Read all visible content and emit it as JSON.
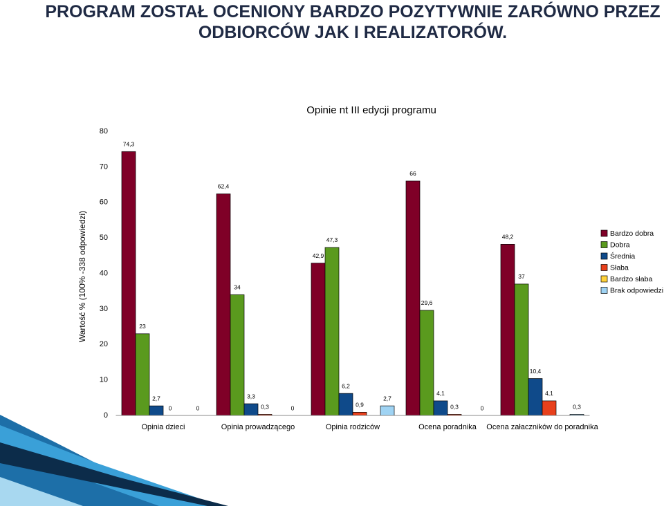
{
  "slide_title": "PROGRAM ZOSTAŁ OCENIONY BARDZO POZYTYWNIE ZARÓWNO PRZEZ ODBIORCÓW JAK I REALIZATORÓW.",
  "chart_data": {
    "type": "bar",
    "title": "Opinie nt III edycji programu",
    "y_label": "Wartość % (100% -338 odpowiedzi)",
    "categories": [
      "Opinia dzieci",
      "Opinia prowadzącego",
      "Opinia rodziców",
      "Ocena poradnika",
      "Ocena załaczników do poradnika"
    ],
    "series": [
      {
        "name": "Bardzo dobra",
        "color": "#7f0027",
        "values": [
          74.3,
          62.4,
          42.9,
          66,
          48.2
        ],
        "value_labels": [
          "74,3",
          "62,4",
          "42,9",
          "66",
          "48,2"
        ]
      },
      {
        "name": "Dobra",
        "color": "#5a9a1e",
        "values": [
          23,
          34,
          47.3,
          29.6,
          37
        ],
        "value_labels": [
          "23",
          "34",
          "47,3",
          "29,6",
          "37"
        ]
      },
      {
        "name": "Średnia",
        "color": "#0f4a8a",
        "values": [
          2.7,
          3.3,
          6.2,
          4.1,
          10.4
        ],
        "value_labels": [
          "2,7",
          "3,3",
          "6,2",
          "4,1",
          "10,4"
        ]
      },
      {
        "name": "Słaba",
        "color": "#e8401c",
        "values": [
          0,
          0.3,
          0.9,
          0.3,
          4.1
        ],
        "value_labels": [
          "0",
          "0,3",
          "0,9",
          "0,3",
          "4,1"
        ]
      },
      {
        "name": "Bardzo słaba",
        "color": "#ffd23a",
        "values": [
          null,
          null,
          null,
          null,
          null
        ]
      },
      {
        "name": "Brak odpowiedzi",
        "color": "#9fd3f3",
        "values": [
          0,
          0,
          2.7,
          0,
          0.3
        ],
        "value_labels": [
          "0",
          "0",
          "2,7",
          "0",
          "0,3"
        ]
      }
    ],
    "ylim": [
      0,
      80
    ],
    "yticks": [
      0,
      10,
      20,
      30,
      40,
      50,
      60,
      70,
      80
    ],
    "grid": false,
    "legend": "right"
  }
}
